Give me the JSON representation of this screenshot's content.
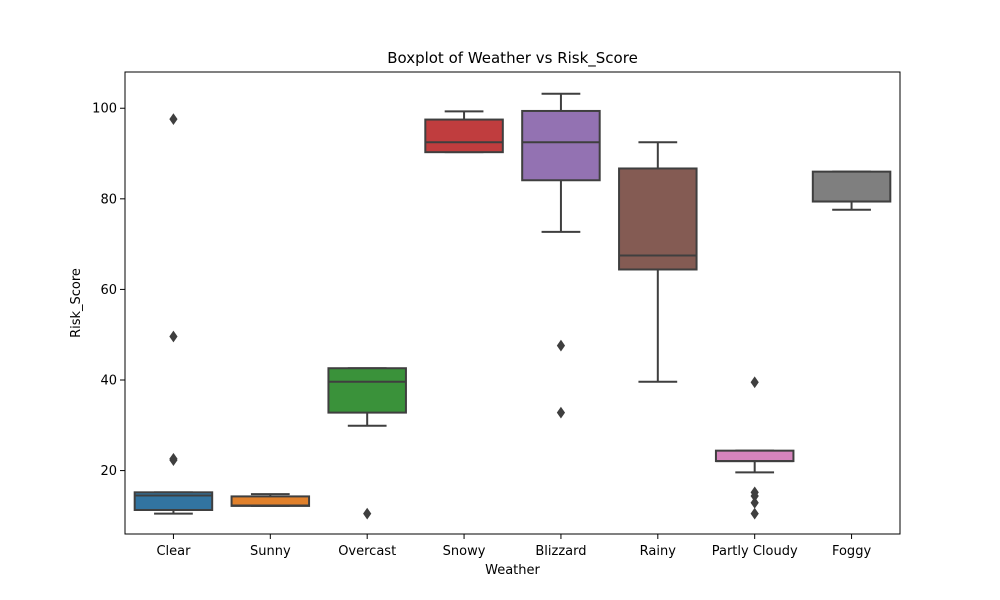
{
  "chart_data": {
    "type": "box",
    "title": "Boxplot of Weather vs Risk_Score",
    "xlabel": "Weather",
    "ylabel": "Risk_Score",
    "ylim": [
      6,
      108
    ],
    "yticks": [
      20,
      40,
      60,
      80,
      100
    ],
    "categories": [
      "Clear",
      "Sunny",
      "Overcast",
      "Snowy",
      "Blizzard",
      "Rainy",
      "Partly Cloudy",
      "Foggy"
    ],
    "boxes": [
      {
        "category": "Clear",
        "color": "#3274a1",
        "whisker_low": 10.5,
        "q1": 11.3,
        "median": 14.5,
        "q3": 15.2,
        "whisker_high": 15.2,
        "outliers": [
          22.3,
          22.6,
          49.6,
          97.6
        ]
      },
      {
        "category": "Sunny",
        "color": "#e1812c",
        "whisker_low": 12.2,
        "q1": 12.2,
        "median": 12.3,
        "q3": 14.3,
        "whisker_high": 14.8,
        "outliers": []
      },
      {
        "category": "Overcast",
        "color": "#3a923a",
        "whisker_low": 29.9,
        "q1": 32.8,
        "median": 39.6,
        "q3": 42.6,
        "whisker_high": 42.6,
        "outliers": [
          10.5
        ]
      },
      {
        "category": "Snowy",
        "color": "#c03d3e",
        "whisker_low": 90.3,
        "q1": 90.3,
        "median": 92.5,
        "q3": 97.5,
        "whisker_high": 99.3,
        "outliers": []
      },
      {
        "category": "Blizzard",
        "color": "#9372b2",
        "whisker_low": 72.7,
        "q1": 84.1,
        "median": 92.5,
        "q3": 99.4,
        "whisker_high": 103.2,
        "outliers": [
          32.8,
          47.6
        ]
      },
      {
        "category": "Rainy",
        "color": "#845b53",
        "whisker_low": 39.6,
        "q1": 64.4,
        "median": 67.5,
        "q3": 86.7,
        "whisker_high": 92.5,
        "outliers": []
      },
      {
        "category": "Partly Cloudy",
        "color": "#d684bd",
        "whisker_low": 19.6,
        "q1": 22.1,
        "median": 22.1,
        "q3": 24.4,
        "whisker_high": 24.4,
        "outliers": [
          10.5,
          12.9,
          14.4,
          15.2,
          39.5
        ]
      },
      {
        "category": "Foggy",
        "color": "#7f7f7f",
        "whisker_low": 77.6,
        "q1": 79.4,
        "median": 79.4,
        "q3": 86.0,
        "whisker_high": 86.0,
        "outliers": []
      }
    ],
    "grid": false,
    "legend": "none"
  }
}
